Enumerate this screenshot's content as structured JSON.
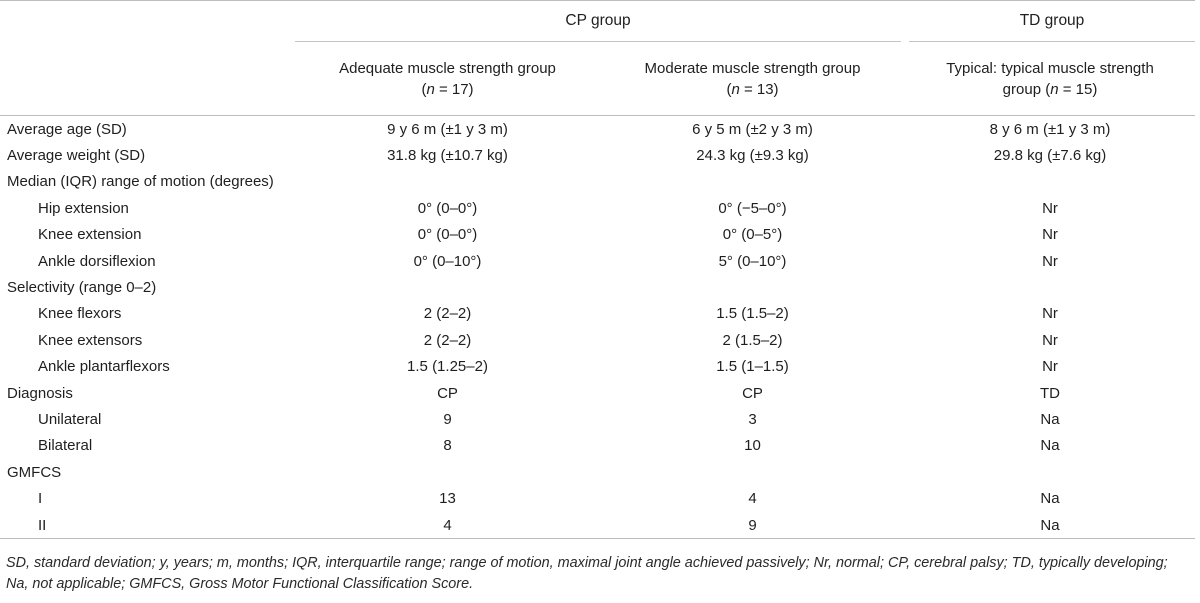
{
  "header": {
    "cp_group": "CP group",
    "td_group": "TD group",
    "col_a_line1": "Adequate muscle strength group",
    "col_a_n_var": "n",
    "col_a_n_val": " = 17)",
    "col_b_line1": "Moderate muscle strength group",
    "col_b_n_var": "n",
    "col_b_n_val": " = 13)",
    "col_c_line1": "Typical: typical muscle strength",
    "col_c_line2_pre": "group (",
    "col_c_n_var": "n",
    "col_c_n_val": " = 15)",
    "open_paren": "("
  },
  "rows": [
    {
      "label": "Average age (SD)",
      "indent": false,
      "a": "9 y 6 m (±1 y 3 m)",
      "b": "6 y 5 m (±2 y 3 m)",
      "c": "8 y 6 m (±1 y 3 m)"
    },
    {
      "label": "Average weight (SD)",
      "indent": false,
      "a": "31.8 kg (±10.7 kg)",
      "b": "24.3 kg (±9.3 kg)",
      "c": "29.8 kg (±7.6 kg)"
    },
    {
      "label": "Median (IQR) range of motion (degrees)",
      "indent": false,
      "a": "",
      "b": "",
      "c": ""
    },
    {
      "label": "Hip extension",
      "indent": true,
      "a": "0° (0–0°)",
      "b": "0° (−5–0°)",
      "c": "Nr"
    },
    {
      "label": "Knee extension",
      "indent": true,
      "a": "0° (0–0°)",
      "b": "0° (0–5°)",
      "c": "Nr"
    },
    {
      "label": "Ankle dorsiflexion",
      "indent": true,
      "a": "0° (0–10°)",
      "b": "5° (0–10°)",
      "c": "Nr"
    },
    {
      "label": "Selectivity (range 0–2)",
      "indent": false,
      "a": "",
      "b": "",
      "c": ""
    },
    {
      "label": "Knee flexors",
      "indent": true,
      "a": "2 (2–2)",
      "b": "1.5 (1.5–2)",
      "c": "Nr"
    },
    {
      "label": "Knee extensors",
      "indent": true,
      "a": "2 (2–2)",
      "b": "2 (1.5–2)",
      "c": "Nr"
    },
    {
      "label": "Ankle plantarflexors",
      "indent": true,
      "a": "1.5 (1.25–2)",
      "b": "1.5 (1–1.5)",
      "c": "Nr"
    },
    {
      "label": "Diagnosis",
      "indent": false,
      "a": "CP",
      "b": "CP",
      "c": "TD"
    },
    {
      "label": "Unilateral",
      "indent": true,
      "a": "9",
      "b": "3",
      "c": "Na"
    },
    {
      "label": "Bilateral",
      "indent": true,
      "a": "8",
      "b": "10",
      "c": "Na"
    },
    {
      "label": "GMFCS",
      "indent": false,
      "a": "",
      "b": "",
      "c": ""
    },
    {
      "label": "I",
      "indent": true,
      "a": "13",
      "b": "4",
      "c": "Na"
    },
    {
      "label": "II",
      "indent": true,
      "a": "4",
      "b": "9",
      "c": "Na"
    }
  ],
  "footnote": "SD, standard deviation; y, years; m, months; IQR, interquartile range; range of motion, maximal joint angle achieved passively; Nr, normal; CP, cerebral palsy; TD, typically developing; Na, not applicable; GMFCS, Gross Motor Functional Classification Score."
}
